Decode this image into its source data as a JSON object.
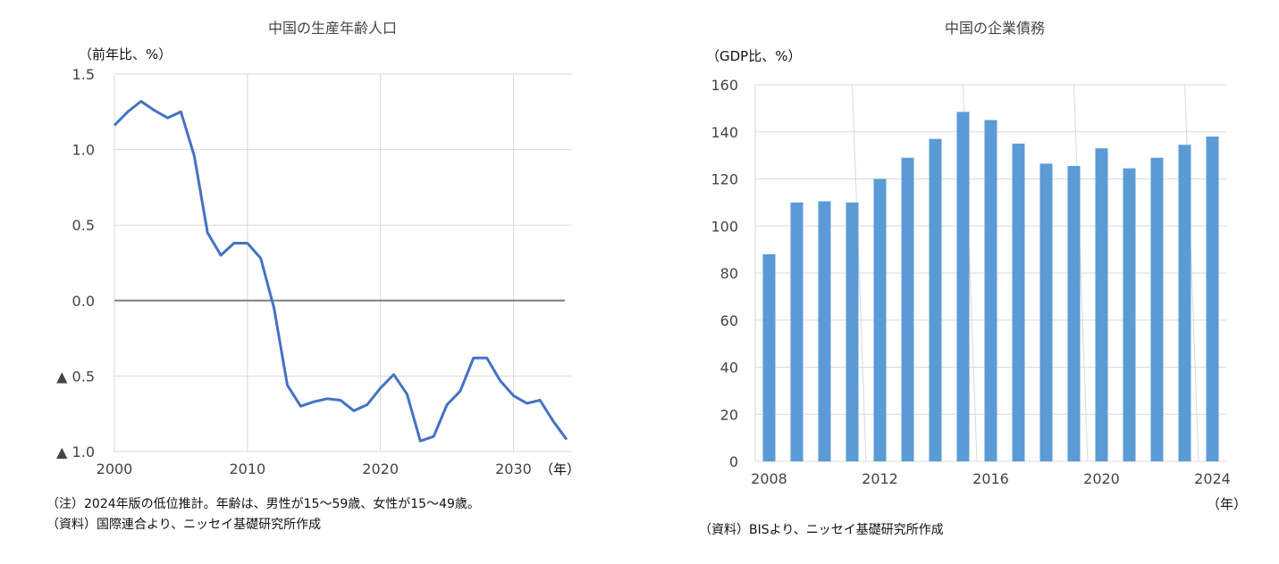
{
  "chart_data": [
    {
      "type": "line",
      "title": "中国の生産年齢人口",
      "ylabel": "（前年比、%）",
      "xlabel": "（年）",
      "x": [
        2000,
        2001,
        2002,
        2003,
        2004,
        2005,
        2006,
        2007,
        2008,
        2009,
        2010,
        2011,
        2012,
        2013,
        2014,
        2015,
        2016,
        2017,
        2018,
        2019,
        2020,
        2021,
        2022,
        2023,
        2024,
        2025,
        2026,
        2027,
        2028,
        2029,
        2030,
        2031,
        2032,
        2033,
        2034
      ],
      "series": [
        {
          "values": [
            1.16,
            1.25,
            1.32,
            1.26,
            1.21,
            1.25,
            0.96,
            0.45,
            0.3,
            0.38,
            0.38,
            0.28,
            -0.05,
            -0.56,
            -0.7,
            -0.67,
            -0.65,
            -0.66,
            -0.73,
            -0.69,
            -0.58,
            -0.49,
            -0.62,
            -0.93,
            -0.9,
            -0.69,
            -0.6,
            -0.38,
            -0.38,
            -0.53,
            -0.63,
            -0.68,
            -0.66,
            -0.8,
            -0.92
          ],
          "color": "#4472c4"
        }
      ],
      "ylim": [
        -1.0,
        1.5
      ],
      "xlim": [
        2000,
        2034
      ],
      "yticks": [
        {
          "value": 1.5,
          "label": "1.5"
        },
        {
          "value": 1.0,
          "label": "1.0"
        },
        {
          "value": 0.5,
          "label": "0.5"
        },
        {
          "value": 0.0,
          "label": "0.0"
        },
        {
          "value": -0.5,
          "label": "▲ 0.5"
        },
        {
          "value": -1.0,
          "label": "▲ 1.0"
        }
      ],
      "xticks": [
        {
          "value": 2000,
          "label": "2000"
        },
        {
          "value": 2010,
          "label": "2010"
        },
        {
          "value": 2020,
          "label": "2020"
        },
        {
          "value": 2030,
          "label": "2030"
        }
      ],
      "grid": true,
      "zero_line_color": "#7f7f7f",
      "notes": [
        "（注）2024年版の低位推計。年齢は、男性が15～59歳、女性が15～49歳。",
        "（資料）国際連合より、ニッセイ基礎研究所作成"
      ]
    },
    {
      "type": "bar",
      "title": "中国の企業債務",
      "ylabel": "（GDP比、%）",
      "xlabel": "（年）",
      "categories": [
        "2008",
        "2009",
        "2010",
        "2011",
        "2012",
        "2013",
        "2014",
        "2015",
        "2016",
        "2017",
        "2018",
        "2019",
        "2020",
        "2021",
        "2022",
        "2023",
        "2024"
      ],
      "values": [
        88,
        110,
        110.5,
        110,
        120,
        129,
        137,
        148.5,
        145,
        135,
        126.5,
        125.5,
        133,
        124.5,
        129,
        134.5,
        138
      ],
      "color": "#5b9bd5",
      "ylim": [
        0,
        160
      ],
      "yticks": [
        "0",
        "20",
        "40",
        "60",
        "80",
        "100",
        "120",
        "140",
        "160"
      ],
      "xtick_labels": [
        "2008",
        "2012",
        "2016",
        "2020",
        "2024"
      ],
      "grid": true,
      "notes": [
        "（資料）BISより、ニッセイ基礎研究所作成"
      ]
    }
  ]
}
